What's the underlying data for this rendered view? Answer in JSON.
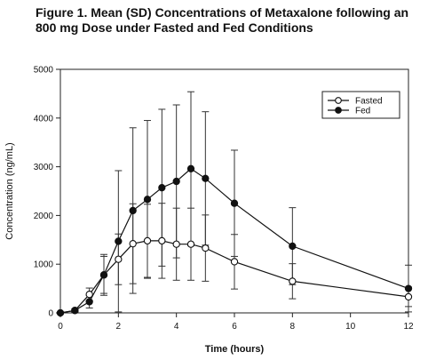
{
  "figure": {
    "title_line1": "Figure 1.  Mean (SD) Concentrations of Metaxalone following an",
    "title_line2": "800 mg Dose  under Fasted and Fed Conditions"
  },
  "chart_data": {
    "type": "line",
    "xlabel": "Time (hours)",
    "ylabel": "Concentration (ng/mL)",
    "xlim": [
      0,
      12
    ],
    "ylim": [
      0,
      5000
    ],
    "x_ticks": [
      0,
      2,
      4,
      6,
      8,
      10,
      12
    ],
    "y_ticks": [
      0,
      1000,
      2000,
      3000,
      4000,
      5000
    ],
    "legend_position": "top-right",
    "series": [
      {
        "name": "Fasted",
        "marker": "open-circle",
        "x": [
          0,
          0.5,
          1,
          1.5,
          2,
          2.5,
          3,
          3.5,
          4,
          4.5,
          5,
          6,
          8,
          12
        ],
        "y": [
          0,
          50,
          380,
          780,
          1100,
          1420,
          1480,
          1480,
          1410,
          1410,
          1330,
          1050,
          650,
          330
        ],
        "sd": [
          0,
          30,
          130,
          380,
          520,
          820,
          750,
          770,
          740,
          740,
          680,
          560,
          360,
          200
        ]
      },
      {
        "name": "Fed",
        "marker": "filled-circle",
        "x": [
          0,
          0.5,
          1,
          1.5,
          2,
          2.5,
          3,
          3.5,
          4,
          4.5,
          5,
          6,
          8,
          12
        ],
        "y": [
          0,
          50,
          230,
          780,
          1470,
          2100,
          2330,
          2570,
          2700,
          2960,
          2760,
          2250,
          1370,
          500
        ],
        "sd": [
          0,
          30,
          130,
          420,
          1450,
          1700,
          1620,
          1610,
          1570,
          1580,
          1370,
          1090,
          790,
          480
        ]
      }
    ]
  }
}
